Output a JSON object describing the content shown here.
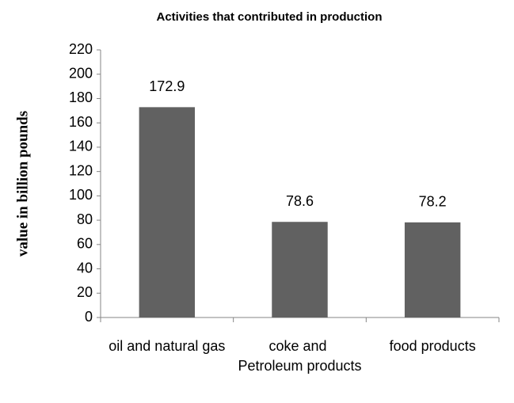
{
  "chart_data": {
    "type": "bar",
    "title": "Activities that contributed in production",
    "y_label": "value in billion pounds",
    "categories": [
      "oil and natural gas",
      "coke and Petroleum products",
      "food products"
    ],
    "values": [
      172.9,
      78.6,
      78.2
    ],
    "color": "#616161",
    "ylim": [
      0,
      220
    ],
    "yticks": [
      0,
      20,
      40,
      60,
      80,
      100,
      120,
      140,
      160,
      180,
      200,
      220
    ],
    "grid": false
  }
}
